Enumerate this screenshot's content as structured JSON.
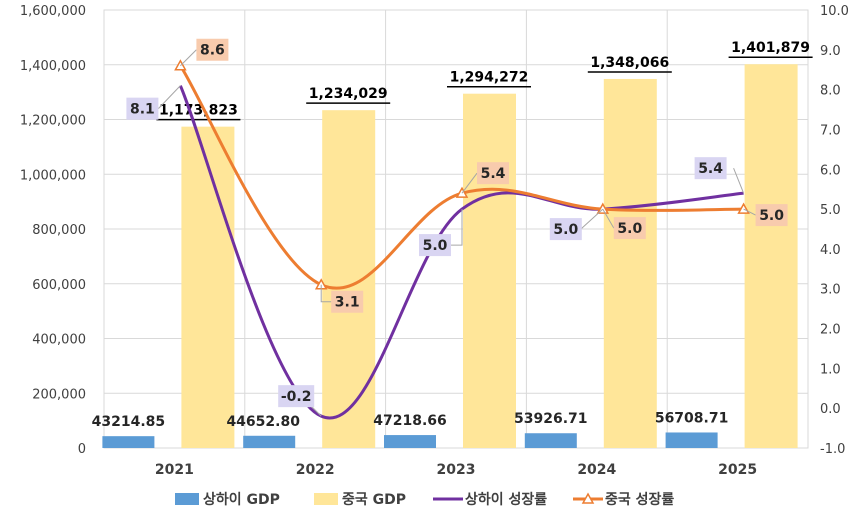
{
  "chart_data": {
    "type": "bar",
    "categories": [
      "2021",
      "2022",
      "2023",
      "2024",
      "2025"
    ],
    "series": [
      {
        "name": "상하이 GDP",
        "kind": "bar",
        "axis": "left",
        "color": "#5b9bd5",
        "values": [
          43214.85,
          44652.8,
          47218.66,
          53926.71,
          56708.71
        ],
        "labels": [
          "43214.85",
          "44652.80",
          "47218.66",
          "53926.71",
          "56708.71"
        ]
      },
      {
        "name": "중국 GDP",
        "kind": "bar",
        "axis": "left",
        "color": "#ffe699",
        "values": [
          1173823,
          1234029,
          1294272,
          1348066,
          1401879
        ],
        "labels": [
          "1,173,823",
          "1,234,029",
          "1,294,272",
          "1,348,066",
          "1,401,879"
        ]
      },
      {
        "name": "상하이 성장률",
        "kind": "line",
        "axis": "right",
        "color": "#7030a0",
        "values": [
          8.1,
          -0.2,
          5.0,
          5.0,
          5.4
        ],
        "labels": [
          "8.1",
          "-0.2",
          "5.0",
          "5.0",
          "5.4"
        ]
      },
      {
        "name": "중국 성장률",
        "kind": "line",
        "axis": "right",
        "color": "#ed7d31",
        "values": [
          8.6,
          3.1,
          5.4,
          5.0,
          5.0
        ],
        "labels": [
          "8.6",
          "3.1",
          "5.4",
          "5.0",
          "5.0"
        ]
      }
    ],
    "left_axis": {
      "min": 0,
      "max": 1600000,
      "step": 200000,
      "ticks": [
        "0",
        "200,000",
        "400,000",
        "600,000",
        "800,000",
        "1,000,000",
        "1,200,000",
        "1,400,000",
        "1,600,000"
      ]
    },
    "right_axis": {
      "min": -1.0,
      "max": 10.0,
      "step": 1.0,
      "ticks": [
        "-1.0",
        "0.0",
        "1.0",
        "2.0",
        "3.0",
        "4.0",
        "5.0",
        "6.0",
        "7.0",
        "8.0",
        "9.0",
        "10.0"
      ]
    },
    "grid": true,
    "legend_position": "bottom",
    "label_box_colors": {
      "purple_box": "#d9d5f2",
      "orange_box": "#f8cbad"
    }
  }
}
